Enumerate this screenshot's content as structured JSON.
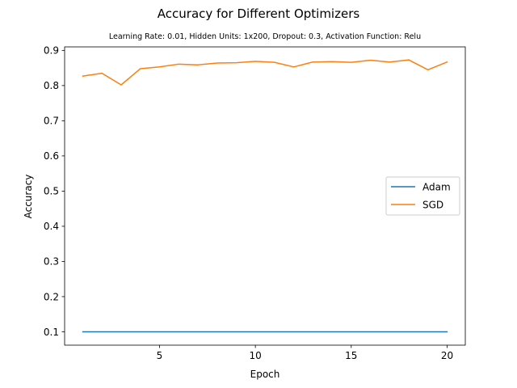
{
  "chart_data": {
    "type": "line",
    "title": "Accuracy for Different Optimizers",
    "subtitle": "Learning Rate: 0.01, Hidden Units: 1x200, Dropout: 0.3, Activation Function: Relu",
    "xlabel": "Epoch",
    "ylabel": "Accuracy",
    "xlim": [
      0.05,
      20.95
    ],
    "ylim": [
      0.062,
      0.91
    ],
    "xticks": [
      5,
      10,
      15,
      20
    ],
    "yticks": [
      0.1,
      0.2,
      0.3,
      0.4,
      0.5,
      0.6,
      0.7,
      0.8,
      0.9
    ],
    "xtick_labels": [
      "5",
      "10",
      "15",
      "20"
    ],
    "ytick_labels": [
      "0.1",
      "0.2",
      "0.3",
      "0.4",
      "0.5",
      "0.6",
      "0.7",
      "0.8",
      "0.9"
    ],
    "grid": false,
    "legend_position": "center-right",
    "x": [
      1,
      2,
      3,
      4,
      5,
      6,
      7,
      8,
      9,
      10,
      11,
      12,
      13,
      14,
      15,
      16,
      17,
      18,
      19,
      20
    ],
    "series": [
      {
        "name": "Adam",
        "color": "#1f77b4",
        "values": [
          0.1,
          0.1,
          0.1,
          0.1,
          0.1,
          0.1,
          0.1,
          0.1,
          0.1,
          0.1,
          0.1,
          0.1,
          0.1,
          0.1,
          0.1,
          0.1,
          0.1,
          0.1,
          0.1,
          0.1
        ]
      },
      {
        "name": "SGD",
        "color": "#ff7f0e",
        "values": [
          0.827,
          0.835,
          0.802,
          0.848,
          0.853,
          0.861,
          0.859,
          0.864,
          0.865,
          0.869,
          0.866,
          0.853,
          0.867,
          0.868,
          0.866,
          0.872,
          0.867,
          0.873,
          0.845,
          0.867
        ]
      }
    ]
  }
}
